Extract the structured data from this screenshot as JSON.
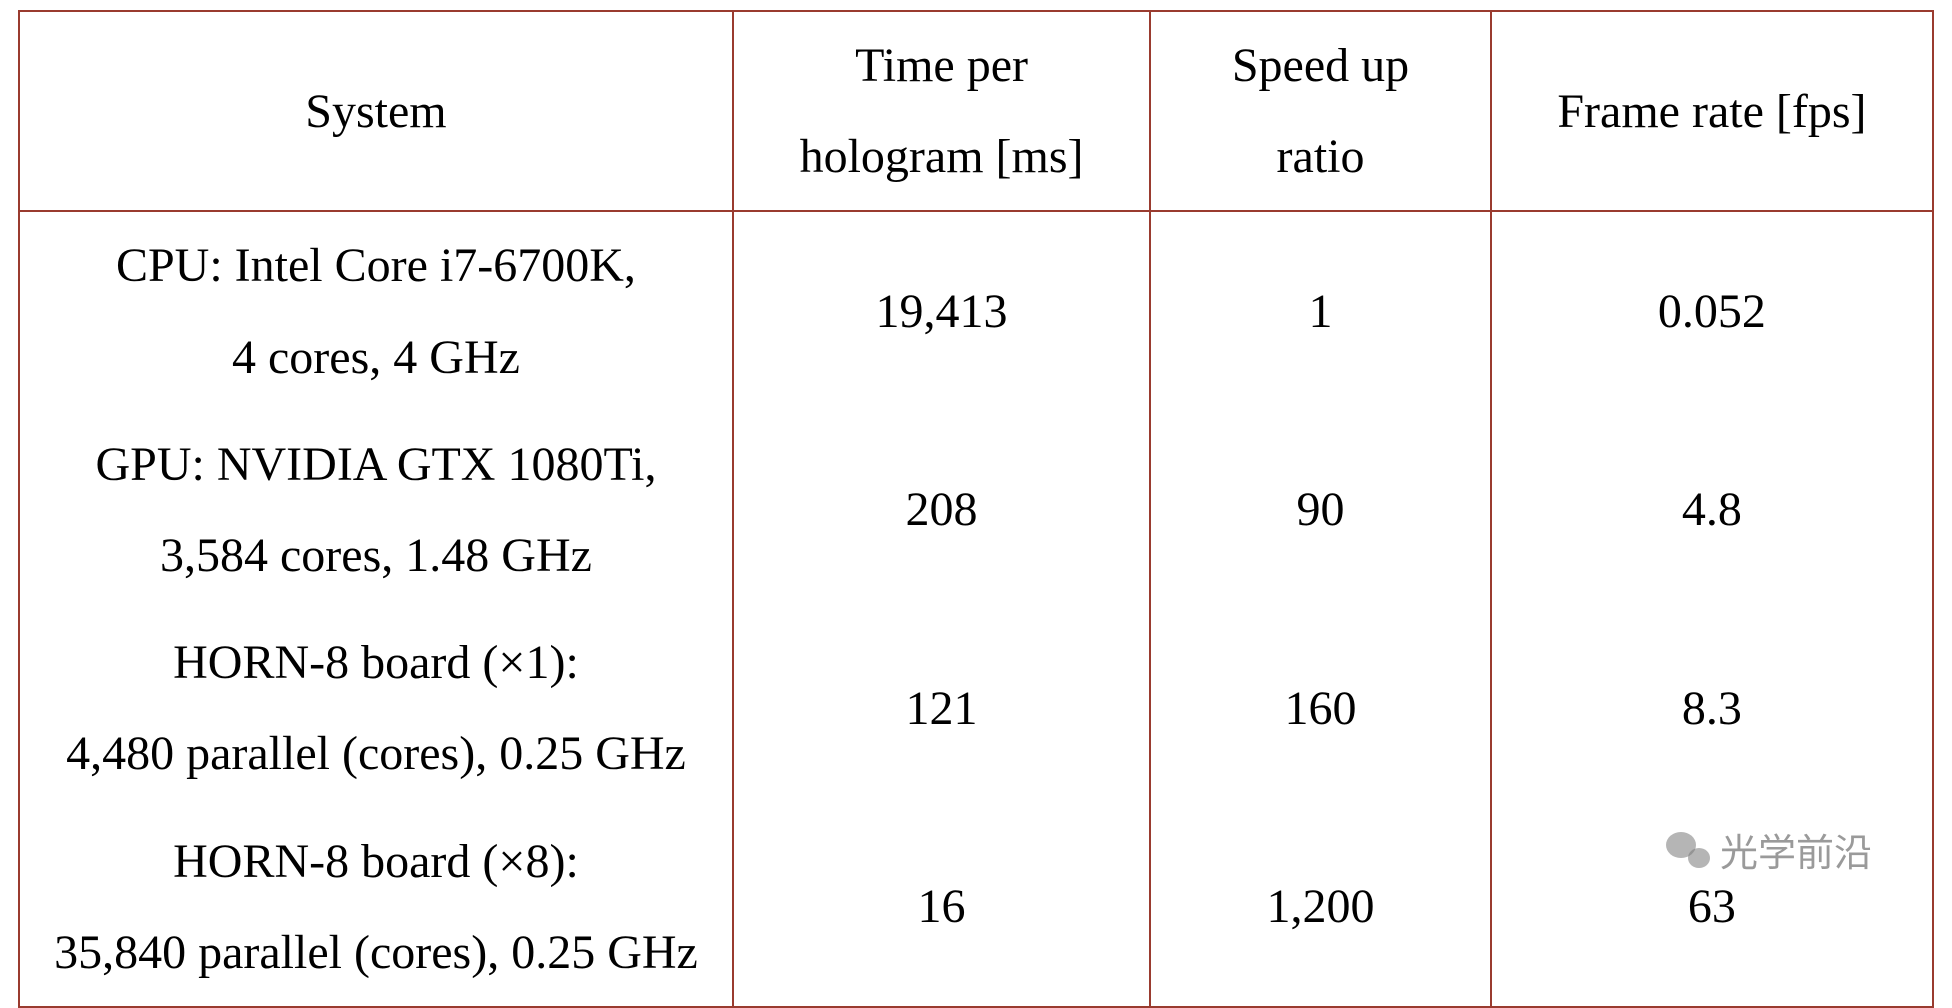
{
  "table": {
    "type": "table",
    "border_color": "#9a3b2f",
    "background_color": "#ffffff",
    "text_color": "#000000",
    "font_family": "Times New Roman",
    "header_fontsize_pt": 36,
    "body_fontsize_pt": 36,
    "column_widths_pct": [
      37.3,
      21.8,
      17.8,
      23.1
    ],
    "columns": [
      "System",
      "Time per hologram [ms]",
      "Speed up ratio",
      "Frame rate [fps]"
    ],
    "rows": [
      {
        "system_line1": "CPU: Intel Core i7-6700K,",
        "system_line2": "4 cores, 4 GHz",
        "time_ms": "19,413",
        "speedup": "1",
        "fps": "0.052"
      },
      {
        "system_line1": "GPU: NVIDIA GTX 1080Ti,",
        "system_line2": "3,584 cores, 1.48 GHz",
        "time_ms": "208",
        "speedup": "90",
        "fps": "4.8"
      },
      {
        "system_line1": "HORN-8 board (×1):",
        "system_line2": "4,480 parallel (cores), 0.25 GHz",
        "time_ms": "121",
        "speedup": "160",
        "fps": "8.3"
      },
      {
        "system_line1": "HORN-8 board (×8):",
        "system_line2": "35,840 parallel (cores), 0.25 GHz",
        "time_ms": "16",
        "speedup": "1,200",
        "fps": "63"
      }
    ]
  },
  "watermark": {
    "text": "光学前沿",
    "color": "rgba(120,120,120,0.75)",
    "fontsize_pt": 28
  }
}
